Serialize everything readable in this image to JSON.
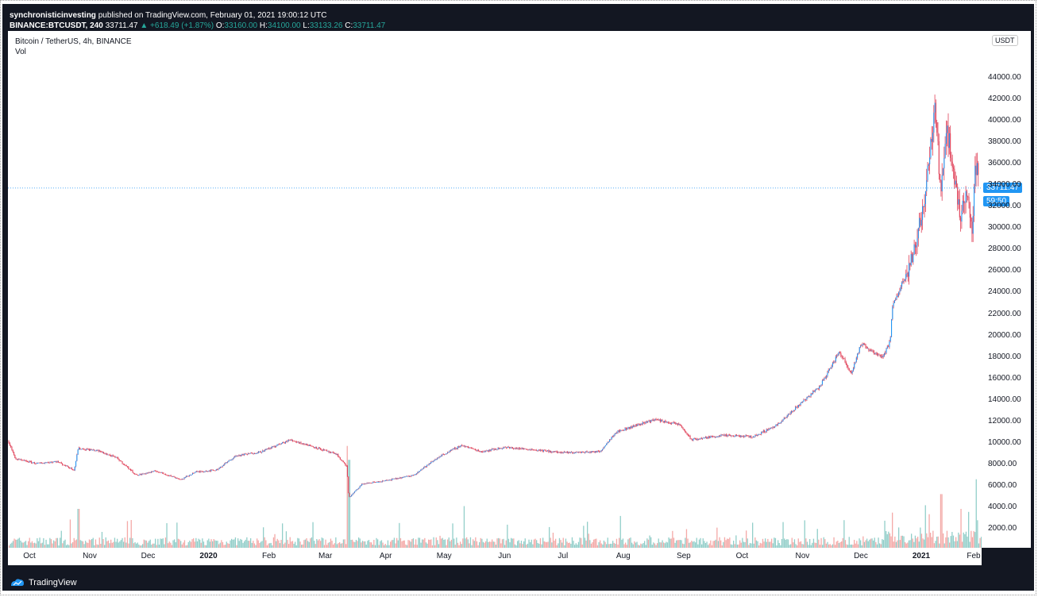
{
  "header": {
    "publisher": "synchronisticinvesting",
    "published_text": "published on TradingView.com, February 01, 2021 19:00:12 UTC",
    "symbol": "BINANCE:BTCUSDT, 240",
    "last": "33711.47",
    "change": "▲ +618.49 (+1.87%)",
    "o_label": "O:",
    "o_value": "33160.00",
    "h_label": "H:",
    "h_value": "34100.00",
    "l_label": "L:",
    "l_value": "33133.26",
    "c_label": "C:",
    "c_value": "33711.47"
  },
  "legend": {
    "series_title": "Bitcoin / TetherUS, 4h, BINANCE",
    "volume_label": "Vol"
  },
  "price_axis": {
    "currency": "USDT",
    "last_price_tag": "33711.47",
    "countdown_tag": "59:50"
  },
  "footer": {
    "brand": "TradingView"
  },
  "colors": {
    "up": "#26a69a",
    "down": "#ef5350",
    "candle_body": "#2196f3",
    "candle_wick": "#e0435a",
    "volume_up": "#7fc6bf",
    "volume_down": "#f29a98",
    "last_price_line": "#2196f3"
  },
  "chart_data": {
    "type": "candlestick",
    "title": "Bitcoin / TetherUS, 4h, BINANCE",
    "ylim": [
      0,
      46000
    ],
    "y_ticks": [
      2000,
      4000,
      6000,
      8000,
      10000,
      12000,
      14000,
      16000,
      18000,
      20000,
      22000,
      24000,
      26000,
      28000,
      30000,
      32000,
      34000,
      36000,
      38000,
      40000,
      42000,
      44000
    ],
    "y_tick_labels": [
      "2000.00",
      "4000.00",
      "6000.00",
      "8000.00",
      "10000.00",
      "12000.00",
      "14000.00",
      "16000.00",
      "18000.00",
      "20000.00",
      "22000.00",
      "24000.00",
      "26000.00",
      "28000.00",
      "30000.00",
      "32000.00",
      "34000.00",
      "36000.00",
      "38000.00",
      "40000.00",
      "42000.00",
      "44000.00"
    ],
    "x_ticks": [
      "2019-10-01",
      "2019-11-01",
      "2019-12-01",
      "2020-01-01",
      "2020-02-01",
      "2020-03-01",
      "2020-04-01",
      "2020-05-01",
      "2020-06-01",
      "2020-07-01",
      "2020-08-01",
      "2020-09-01",
      "2020-10-01",
      "2020-11-01",
      "2020-12-01",
      "2021-01-01",
      "2021-02-01"
    ],
    "x_tick_labels": [
      "Oct",
      "Nov",
      "Dec",
      "2020",
      "Feb",
      "Mar",
      "Apr",
      "May",
      "Jun",
      "Jul",
      "Aug",
      "Sep",
      "Oct",
      "Nov",
      "Dec",
      "2021",
      "Feb"
    ],
    "x_range": [
      "2019-09-20",
      "2021-02-01"
    ],
    "last_price": 33711.47,
    "price_path": [
      [
        "2019-09-20",
        10200
      ],
      [
        "2019-09-24",
        8500
      ],
      [
        "2019-10-05",
        8100
      ],
      [
        "2019-10-15",
        8300
      ],
      [
        "2019-10-24",
        7500
      ],
      [
        "2019-10-26",
        9500
      ],
      [
        "2019-11-05",
        9300
      ],
      [
        "2019-11-15",
        8600
      ],
      [
        "2019-11-25",
        7000
      ],
      [
        "2019-12-05",
        7400
      ],
      [
        "2019-12-18",
        6600
      ],
      [
        "2019-12-25",
        7300
      ],
      [
        "2020-01-05",
        7500
      ],
      [
        "2020-01-15",
        8800
      ],
      [
        "2020-01-28",
        9200
      ],
      [
        "2020-02-12",
        10300
      ],
      [
        "2020-02-25",
        9600
      ],
      [
        "2020-03-07",
        8900
      ],
      [
        "2020-03-12",
        7800
      ],
      [
        "2020-03-13",
        4900
      ],
      [
        "2020-03-20",
        6200
      ],
      [
        "2020-04-01",
        6500
      ],
      [
        "2020-04-15",
        7000
      ],
      [
        "2020-04-29",
        8800
      ],
      [
        "2020-05-10",
        9800
      ],
      [
        "2020-05-20",
        9200
      ],
      [
        "2020-06-01",
        9600
      ],
      [
        "2020-06-15",
        9400
      ],
      [
        "2020-07-01",
        9100
      ],
      [
        "2020-07-20",
        9200
      ],
      [
        "2020-07-28",
        11000
      ],
      [
        "2020-08-10",
        11800
      ],
      [
        "2020-08-17",
        12200
      ],
      [
        "2020-08-30",
        11700
      ],
      [
        "2020-09-05",
        10300
      ],
      [
        "2020-09-20",
        10700
      ],
      [
        "2020-10-07",
        10600
      ],
      [
        "2020-10-20",
        11800
      ],
      [
        "2020-10-31",
        13700
      ],
      [
        "2020-11-10",
        15300
      ],
      [
        "2020-11-20",
        18500
      ],
      [
        "2020-11-26",
        16500
      ],
      [
        "2020-12-01",
        19200
      ],
      [
        "2020-12-12",
        18000
      ],
      [
        "2020-12-16",
        19400
      ],
      [
        "2020-12-17",
        22500
      ],
      [
        "2020-12-27",
        27000
      ],
      [
        "2021-01-03",
        33000
      ],
      [
        "2021-01-08",
        41000
      ],
      [
        "2021-01-11",
        33500
      ],
      [
        "2021-01-14",
        39500
      ],
      [
        "2021-01-21",
        31000
      ],
      [
        "2021-01-24",
        33500
      ],
      [
        "2021-01-27",
        30000
      ],
      [
        "2021-01-29",
        36000
      ],
      [
        "2021-02-01",
        33711.47
      ]
    ],
    "volume_spikes": [
      [
        "2019-10-26",
        4200
      ],
      [
        "2019-11-22",
        3000
      ],
      [
        "2020-03-12",
        11000
      ],
      [
        "2020-03-13",
        9500
      ],
      [
        "2020-05-11",
        4500
      ],
      [
        "2020-12-17",
        3800
      ],
      [
        "2021-01-03",
        4600
      ],
      [
        "2021-01-11",
        5800
      ],
      [
        "2021-01-21",
        4200
      ],
      [
        "2021-01-29",
        7400
      ]
    ],
    "grid": false,
    "series": [
      {
        "name": "Bitcoin / TetherUS, 4h, BINANCE"
      },
      {
        "name": "Vol"
      }
    ]
  }
}
